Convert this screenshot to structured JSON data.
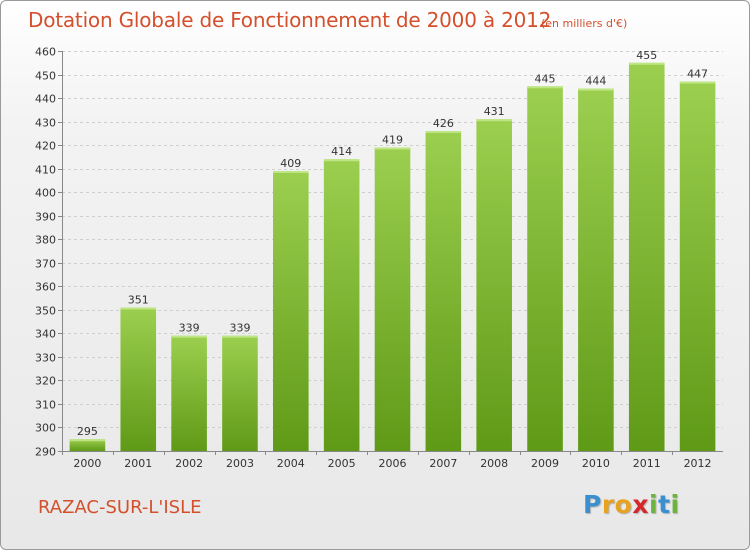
{
  "header": {
    "title": "Dotation Globale de Fonctionnement de 2000 à 2012",
    "unit": "(en milliers d'€)"
  },
  "footer": {
    "commune": "RAZAC-SUR-L'ISLE",
    "logo_letters": [
      "P",
      "r",
      "o",
      "x",
      "i",
      "t",
      "i"
    ],
    "logo_colors": [
      "#3a8fd0",
      "#e8a21e",
      "#e8a21e",
      "#d6282a",
      "#6cb33f",
      "#3a8fd0",
      "#6cb33f"
    ]
  },
  "chart_data": {
    "type": "bar",
    "title": "Dotation Globale de Fonctionnement de 2000 à 2012",
    "categories": [
      "2000",
      "2001",
      "2002",
      "2003",
      "2004",
      "2005",
      "2006",
      "2007",
      "2008",
      "2009",
      "2010",
      "2011",
      "2012"
    ],
    "values": [
      295,
      351,
      339,
      339,
      409,
      414,
      419,
      426,
      431,
      445,
      444,
      455,
      447
    ],
    "ylim": [
      290,
      460
    ],
    "yticks": [
      290,
      300,
      310,
      320,
      330,
      340,
      350,
      360,
      370,
      380,
      390,
      400,
      410,
      420,
      430,
      440,
      450,
      460
    ],
    "grid": true,
    "bar_color_top": "#9ccf4f",
    "bar_color_bottom": "#5f9a17"
  }
}
